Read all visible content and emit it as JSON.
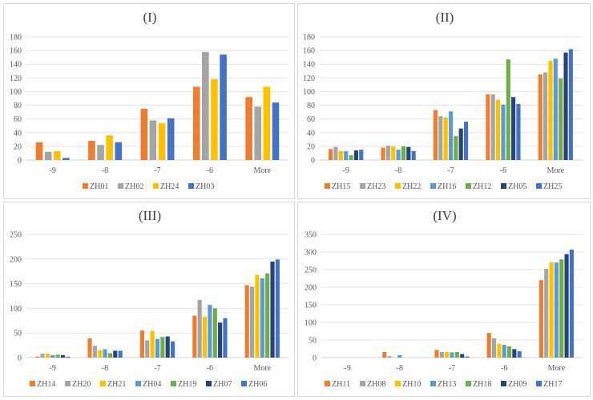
{
  "colors": {
    "orange": "#ED7D31",
    "gray": "#A5A5A5",
    "gold": "#FFC000",
    "lightblue": "#5B9BD5",
    "green": "#70AD47",
    "navy": "#264478",
    "blue": "#4472C4"
  },
  "chart_data": [
    {
      "type": "bar",
      "title": "(I)",
      "xlabel": "",
      "ylabel": "",
      "categories": [
        "-9",
        "-8",
        "-7",
        "-6",
        "More"
      ],
      "ylim": [
        0,
        180
      ],
      "yticks": [
        0,
        20,
        40,
        60,
        80,
        100,
        120,
        140,
        160,
        180
      ],
      "grid": true,
      "legend": "bottom",
      "series": [
        {
          "name": "ZH01",
          "color": "#ED7D31",
          "values": [
            26,
            28,
            75,
            107,
            92
          ]
        },
        {
          "name": "ZH02",
          "color": "#A5A5A5",
          "values": [
            12,
            22,
            58,
            158,
            78
          ]
        },
        {
          "name": "ZH24",
          "color": "#FFC000",
          "values": [
            13,
            36,
            54,
            118,
            107
          ]
        },
        {
          "name": "ZH03",
          "color": "#4472C4",
          "values": [
            3,
            26,
            61,
            154,
            84
          ]
        }
      ]
    },
    {
      "type": "bar",
      "title": "(II)",
      "xlabel": "",
      "ylabel": "",
      "categories": [
        "-9",
        "-8",
        "-7",
        "-6",
        "More"
      ],
      "ylim": [
        0,
        180
      ],
      "yticks": [
        0,
        20,
        40,
        60,
        80,
        100,
        120,
        140,
        160,
        180
      ],
      "grid": true,
      "legend": "bottom",
      "series": [
        {
          "name": "ZH15",
          "color": "#ED7D31",
          "values": [
            16,
            18,
            73,
            96,
            125
          ]
        },
        {
          "name": "ZH23",
          "color": "#A5A5A5",
          "values": [
            19,
            21,
            64,
            96,
            128
          ]
        },
        {
          "name": "ZH22",
          "color": "#FFC000",
          "values": [
            13,
            20,
            62,
            88,
            145
          ]
        },
        {
          "name": "ZH16",
          "color": "#5B9BD5",
          "values": [
            13,
            15,
            71,
            81,
            148
          ]
        },
        {
          "name": "ZH12",
          "color": "#70AD47",
          "values": [
            7,
            20,
            35,
            147,
            119
          ]
        },
        {
          "name": "ZH05",
          "color": "#264478",
          "values": [
            14,
            19,
            46,
            92,
            157
          ]
        },
        {
          "name": "ZH25",
          "color": "#4472C4",
          "values": [
            15,
            13,
            56,
            82,
            162
          ]
        }
      ]
    },
    {
      "type": "bar",
      "title": "(III)",
      "xlabel": "",
      "ylabel": "",
      "categories": [
        "-9",
        "-8",
        "-7",
        "-6",
        "More"
      ],
      "ylim": [
        0,
        250
      ],
      "yticks": [
        0,
        50,
        100,
        150,
        200,
        250
      ],
      "grid": true,
      "legend": "bottom",
      "series": [
        {
          "name": "ZH14",
          "color": "#ED7D31",
          "values": [
            2,
            39,
            55,
            85,
            147
          ]
        },
        {
          "name": "ZH20",
          "color": "#A5A5A5",
          "values": [
            8,
            24,
            35,
            117,
            144
          ]
        },
        {
          "name": "ZH21",
          "color": "#FFC000",
          "values": [
            8,
            15,
            54,
            83,
            168
          ]
        },
        {
          "name": "ZH04",
          "color": "#5B9BD5",
          "values": [
            5,
            17,
            38,
            107,
            161
          ]
        },
        {
          "name": "ZH19",
          "color": "#70AD47",
          "values": [
            6,
            9,
            42,
            100,
            171
          ]
        },
        {
          "name": "ZH07",
          "color": "#264478",
          "values": [
            5,
            14,
            43,
            71,
            195
          ]
        },
        {
          "name": "ZH06",
          "color": "#4472C4",
          "values": [
            2,
            14,
            33,
            80,
            199
          ]
        }
      ]
    },
    {
      "type": "bar",
      "title": "(IV)",
      "xlabel": "",
      "ylabel": "",
      "categories": [
        "-9",
        "-8",
        "-7",
        "-6",
        "More"
      ],
      "ylim": [
        0,
        350
      ],
      "yticks": [
        0,
        50,
        100,
        150,
        200,
        250,
        300,
        350
      ],
      "grid": true,
      "legend": "bottom",
      "series": [
        {
          "name": "ZH11",
          "color": "#ED7D31",
          "values": [
            0,
            16,
            22,
            70,
            220
          ]
        },
        {
          "name": "ZH08",
          "color": "#A5A5A5",
          "values": [
            0,
            4,
            16,
            55,
            252
          ]
        },
        {
          "name": "ZH10",
          "color": "#FFC000",
          "values": [
            0,
            0,
            16,
            39,
            271
          ]
        },
        {
          "name": "ZH13",
          "color": "#5B9BD5",
          "values": [
            0,
            7,
            15,
            36,
            270
          ]
        },
        {
          "name": "ZH18",
          "color": "#70AD47",
          "values": [
            0,
            0,
            16,
            32,
            279
          ]
        },
        {
          "name": "ZH09",
          "color": "#264478",
          "values": [
            0,
            0,
            10,
            24,
            294
          ]
        },
        {
          "name": "ZH17",
          "color": "#4472C4",
          "values": [
            0,
            0,
            3,
            18,
            307
          ]
        }
      ]
    }
  ]
}
